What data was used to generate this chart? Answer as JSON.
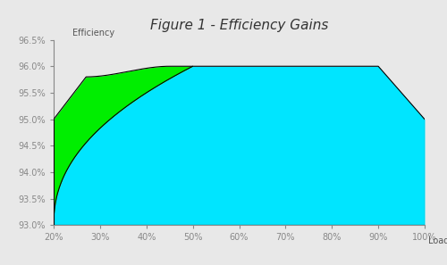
{
  "title": "Figure 1 - Efficiency Gains",
  "xlabel": "Load",
  "ylabel": "Efficiency",
  "x_ticks": [
    20,
    30,
    40,
    50,
    60,
    70,
    80,
    90,
    100
  ],
  "x_tick_labels": [
    "20%",
    "30%",
    "40%",
    "50%",
    "60%",
    "70%",
    "80%",
    "90%",
    "100%"
  ],
  "ylim": [
    93.0,
    96.5
  ],
  "xlim": [
    20,
    100
  ],
  "y_ticks": [
    93.0,
    93.5,
    94.0,
    94.5,
    95.0,
    95.5,
    96.0,
    96.5
  ],
  "y_tick_labels": [
    "93.0%",
    "93.5%",
    "94.0%",
    "94.5%",
    "95.0%",
    "95.5%",
    "96.0%",
    "96.5%"
  ],
  "cyan_color": "#00E5FF",
  "green_color": "#00EE00",
  "edge_color": "#000000",
  "bg_color": "#E8E8E8",
  "title_fontsize": 11,
  "tick_fontsize": 7,
  "label_fontsize": 7
}
